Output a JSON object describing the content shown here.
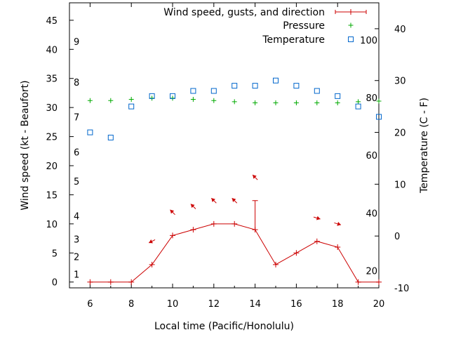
{
  "chart_data": {
    "type": "line",
    "xlabel": "Local time (Pacific/Honolulu)",
    "ylabel": "Wind speed (kt - Beaufort)",
    "y2label": "Temperature (C - F)",
    "xlim": [
      5,
      20
    ],
    "ylim": [
      -1,
      48
    ],
    "y2lim": [
      -10,
      45
    ],
    "x_ticks": [
      6,
      8,
      10,
      12,
      14,
      16,
      18,
      20
    ],
    "y_ticks": [
      0,
      5,
      10,
      15,
      20,
      25,
      30,
      35,
      40,
      45
    ],
    "y2_ticks": [
      -10,
      0,
      10,
      20,
      30,
      40
    ],
    "fahrenheit_ticks": [
      {
        "label": "20",
        "c": -6.7
      },
      {
        "label": "40",
        "c": 4.4
      },
      {
        "label": "60",
        "c": 15.6
      },
      {
        "label": "80",
        "c": 26.7
      },
      {
        "label": "100",
        "c": 37.8
      }
    ],
    "beaufort_ticks": [
      {
        "label": "1",
        "kt": 1
      },
      {
        "label": "2",
        "kt": 4
      },
      {
        "label": "3",
        "kt": 7
      },
      {
        "label": "4",
        "kt": 11
      },
      {
        "label": "5",
        "kt": 17
      },
      {
        "label": "6",
        "kt": 22
      },
      {
        "label": "7",
        "kt": 28
      },
      {
        "label": "8",
        "kt": 34
      },
      {
        "label": "9",
        "kt": 41
      }
    ],
    "legend": [
      {
        "label": "Wind speed, gusts, and direction",
        "color": "#cc0000",
        "marker": "errorbar"
      },
      {
        "label": "Pressure",
        "color": "#00aa00",
        "marker": "plus"
      },
      {
        "label": "Temperature",
        "color": "#0066cc",
        "marker": "square"
      }
    ],
    "legend_position": "top-right",
    "series": {
      "wind": {
        "x": [
          6,
          7,
          8,
          9,
          10,
          11,
          12,
          13,
          14,
          15,
          16,
          17,
          18,
          19,
          20
        ],
        "speed": [
          0,
          0,
          0,
          3,
          8,
          9,
          10,
          10,
          9,
          3,
          5,
          7,
          6,
          0,
          0
        ],
        "gust_x": 14,
        "gust_value": 14
      },
      "wind_direction": [
        {
          "x": 9,
          "kt": 7,
          "dir": "arrow-lower-left"
        },
        {
          "x": 10,
          "kt": 12,
          "dir": "arrow-upper-left"
        },
        {
          "x": 11,
          "kt": 13,
          "dir": "arrow-upper-left"
        },
        {
          "x": 12,
          "kt": 14,
          "dir": "arrow-upper-left"
        },
        {
          "x": 13,
          "kt": 14,
          "dir": "arrow-upper-left"
        },
        {
          "x": 14,
          "kt": 18,
          "dir": "arrow-upper-left"
        },
        {
          "x": 17,
          "kt": 11,
          "dir": "arrow-right"
        },
        {
          "x": 18,
          "kt": 10,
          "dir": "arrow-right"
        }
      ],
      "pressure": {
        "x": [
          6,
          7,
          8,
          9,
          10,
          11,
          12,
          13,
          14,
          15,
          16,
          17,
          18,
          19,
          20
        ],
        "y_kt": [
          31.2,
          31.2,
          31.4,
          31.6,
          31.6,
          31.4,
          31.2,
          31.0,
          30.8,
          30.8,
          30.8,
          30.8,
          30.8,
          31.0,
          31.1
        ]
      },
      "temperature": {
        "x": [
          6,
          7,
          8,
          9,
          10,
          11,
          12,
          13,
          14,
          15,
          16,
          17,
          18,
          19,
          20
        ],
        "c": [
          20,
          19,
          25,
          27,
          27,
          28,
          28,
          29,
          29,
          30,
          29,
          28,
          27,
          25,
          23
        ]
      }
    }
  }
}
